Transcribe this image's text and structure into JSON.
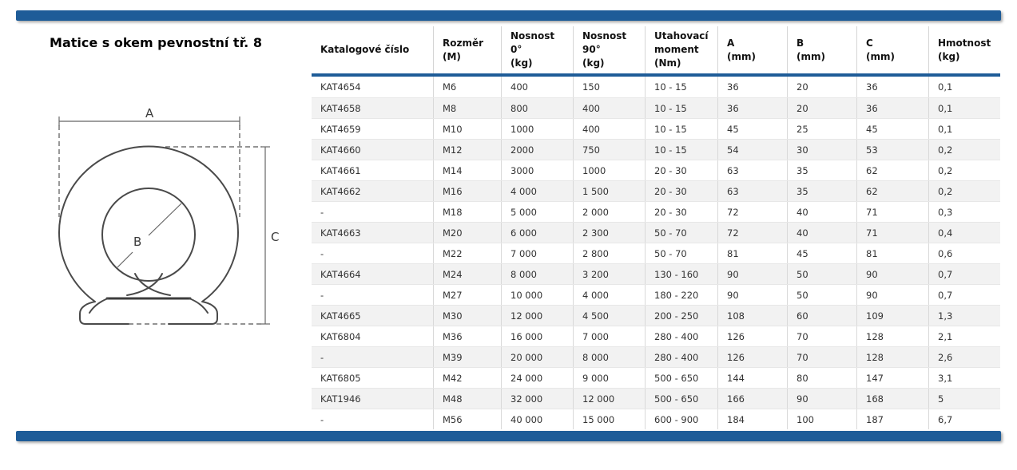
{
  "page": {
    "title": "Matice s okem pevnostní tř. 8"
  },
  "accent_color": "#1e5c98",
  "stripe_color": "#f2f2f2",
  "diagram": {
    "labels": {
      "a": "A",
      "b": "B",
      "c": "C"
    }
  },
  "table": {
    "columns": [
      {
        "id": "catalog",
        "lines": [
          "Katalogové číslo"
        ]
      },
      {
        "id": "size",
        "lines": [
          "Rozměr",
          "(M)"
        ]
      },
      {
        "id": "load0",
        "lines": [
          "Nosnost",
          "0°",
          "(kg)"
        ]
      },
      {
        "id": "load90",
        "lines": [
          "Nosnost",
          "90°",
          "(kg)"
        ]
      },
      {
        "id": "torque",
        "lines": [
          "Utahovací",
          "moment",
          "(Nm)"
        ]
      },
      {
        "id": "a",
        "lines": [
          "A",
          "(mm)"
        ]
      },
      {
        "id": "b",
        "lines": [
          "B",
          "(mm)"
        ]
      },
      {
        "id": "c",
        "lines": [
          "C",
          "(mm)"
        ]
      },
      {
        "id": "weight",
        "lines": [
          "Hmotnost",
          "(kg)"
        ]
      }
    ],
    "rows": [
      [
        "KAT4654",
        "M6",
        "400",
        "150",
        "10 - 15",
        "36",
        "20",
        "36",
        "0,1"
      ],
      [
        "KAT4658",
        "M8",
        "800",
        "400",
        "10 - 15",
        "36",
        "20",
        "36",
        "0,1"
      ],
      [
        "KAT4659",
        "M10",
        "1000",
        "400",
        "10 - 15",
        "45",
        "25",
        "45",
        "0,1"
      ],
      [
        "KAT4660",
        "M12",
        "2000",
        "750",
        "10 - 15",
        "54",
        "30",
        "53",
        "0,2"
      ],
      [
        "KAT4661",
        "M14",
        "3000",
        "1000",
        "20 - 30",
        "63",
        "35",
        "62",
        "0,2"
      ],
      [
        "KAT4662",
        "M16",
        "4 000",
        "1 500",
        "20 - 30",
        "63",
        "35",
        "62",
        "0,2"
      ],
      [
        "-",
        "M18",
        "5 000",
        "2 000",
        "20 - 30",
        "72",
        "40",
        "71",
        "0,3"
      ],
      [
        "KAT4663",
        "M20",
        "6 000",
        "2 300",
        "50 - 70",
        "72",
        "40",
        "71",
        "0,4"
      ],
      [
        "-",
        "M22",
        "7 000",
        "2 800",
        "50 - 70",
        "81",
        "45",
        "81",
        "0,6"
      ],
      [
        "KAT4664",
        "M24",
        "8 000",
        "3 200",
        "130 - 160",
        "90",
        "50",
        "90",
        "0,7"
      ],
      [
        "-",
        "M27",
        "10 000",
        "4 000",
        "180 - 220",
        "90",
        "50",
        "90",
        "0,7"
      ],
      [
        "KAT4665",
        "M30",
        "12 000",
        "4 500",
        "200 - 250",
        "108",
        "60",
        "109",
        "1,3"
      ],
      [
        "KAT6804",
        "M36",
        "16 000",
        "7 000",
        "280 - 400",
        "126",
        "70",
        "128",
        "2,1"
      ],
      [
        "-",
        "M39",
        "20 000",
        "8 000",
        "280 - 400",
        "126",
        "70",
        "128",
        "2,6"
      ],
      [
        "KAT6805",
        "M42",
        "24 000",
        "9 000",
        "500 - 650",
        "144",
        "80",
        "147",
        "3,1"
      ],
      [
        "KAT1946",
        "M48",
        "32 000",
        "12 000",
        "500 - 650",
        "166",
        "90",
        "168",
        "5"
      ],
      [
        "-",
        "M56",
        "40 000",
        "15 000",
        "600 - 900",
        "184",
        "100",
        "187",
        "6,7"
      ]
    ]
  }
}
